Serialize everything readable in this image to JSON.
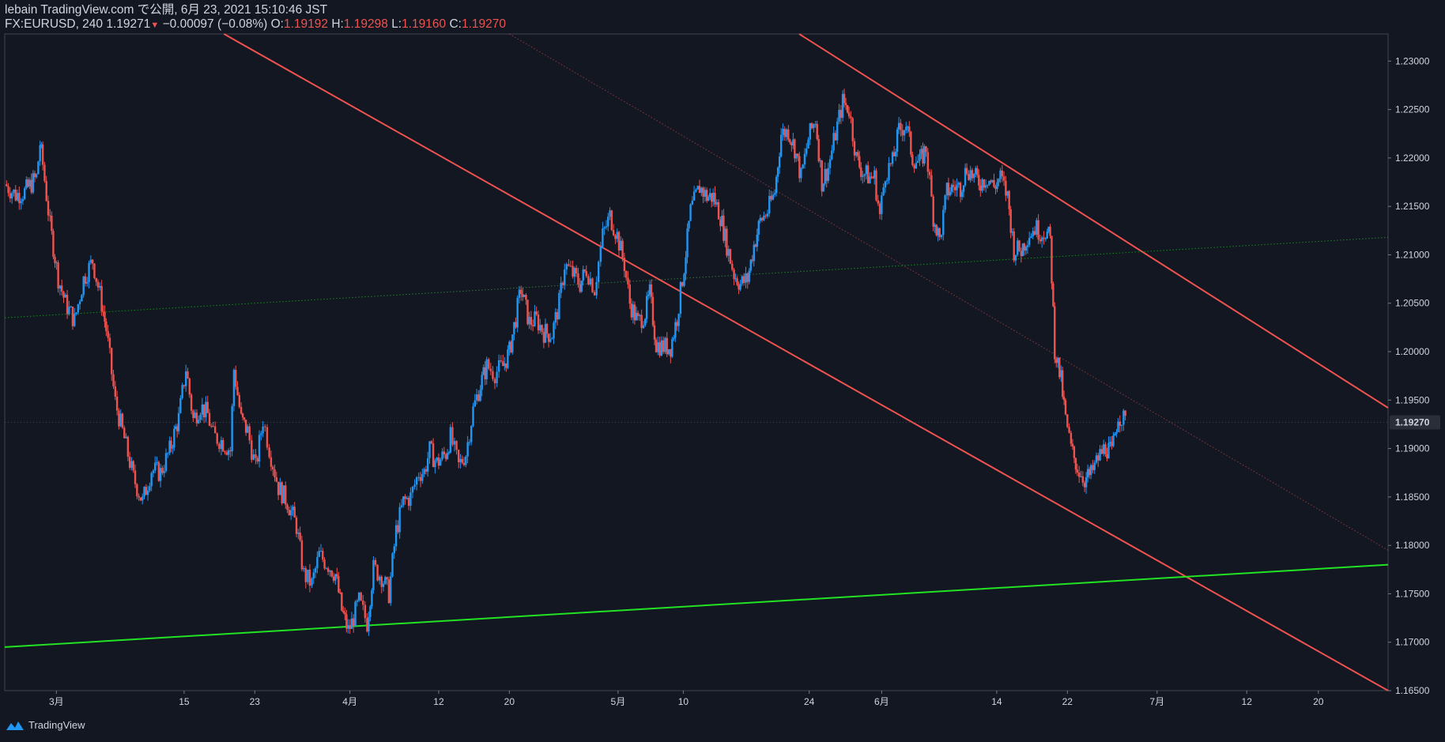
{
  "header": {
    "line1": "lebain TradingView.com で公開, 6月 23, 2021 15:10:46 JST",
    "symbol_interval": "FX:EURUSD, 240",
    "last": "1.19271",
    "arrow": "▼",
    "change": "−0.00097 (−0.08%)",
    "o_label": "O:",
    "o_value": "1.19192",
    "h_label": "H:",
    "h_value": "1.19298",
    "l_label": "L:",
    "l_value": "1.19160",
    "c_label": "C:",
    "c_value": "1.19270"
  },
  "footer": {
    "brand": "TradingView"
  },
  "colors": {
    "background": "#131722",
    "up": "#2196f3",
    "down": "#ef5350",
    "channel": "#ef5350",
    "support": "#22e322",
    "text": "#d1d4dc",
    "grid": "#2a2e39"
  },
  "chart_data": {
    "type": "candlestick",
    "symbol": "FX:EURUSD",
    "interval": "240",
    "ylim": [
      1.165,
      1.2328
    ],
    "y_ticks": [
      "1.23000",
      "1.22500",
      "1.22000",
      "1.21500",
      "1.21000",
      "1.20500",
      "1.20000",
      "1.19500",
      "1.19000",
      "1.18500",
      "1.18000",
      "1.17500",
      "1.17000",
      "1.16500"
    ],
    "last_price_label": "1.19270",
    "x_ticks": [
      {
        "label": "3月",
        "x": 3.0
      },
      {
        "label": "15",
        "x": 17.1
      },
      {
        "label": "23",
        "x": 24.9
      },
      {
        "label": "4月",
        "x": 35.4
      },
      {
        "label": "12",
        "x": 45.2
      },
      {
        "label": "20",
        "x": 53.0
      },
      {
        "label": "5月",
        "x": 65.0
      },
      {
        "label": "10",
        "x": 72.2
      },
      {
        "label": "24",
        "x": 86.1
      },
      {
        "label": "6月",
        "x": 94.1
      },
      {
        "label": "14",
        "x": 106.8
      },
      {
        "label": "22",
        "x": 114.6
      },
      {
        "label": "7月",
        "x": 124.5
      },
      {
        "label": "12",
        "x": 134.4
      },
      {
        "label": "20",
        "x": 142.3
      }
    ],
    "x_range": [
      -2.7,
      150.0
    ],
    "price_path": [
      [
        -2.7,
        1.2173
      ],
      [
        -1.5,
        1.2162
      ],
      [
        -0.5,
        1.2165
      ],
      [
        0.8,
        1.218
      ],
      [
        1.2,
        1.2215
      ],
      [
        1.5,
        1.2193
      ],
      [
        2.3,
        1.213
      ],
      [
        3.2,
        1.2076
      ],
      [
        4.0,
        1.205
      ],
      [
        5.0,
        1.2032
      ],
      [
        6.0,
        1.2075
      ],
      [
        7.0,
        1.2094
      ],
      [
        8.0,
        1.205
      ],
      [
        8.5,
        1.2023
      ],
      [
        9.5,
        1.1948
      ],
      [
        10.5,
        1.191
      ],
      [
        11.5,
        1.187
      ],
      [
        12.5,
        1.1845
      ],
      [
        13.5,
        1.1878
      ],
      [
        14.5,
        1.1875
      ],
      [
        15.5,
        1.1898
      ],
      [
        16.0,
        1.1915
      ],
      [
        16.5,
        1.1931
      ],
      [
        17.3,
        1.1983
      ],
      [
        18.1,
        1.193
      ],
      [
        18.9,
        1.1944
      ],
      [
        19.7,
        1.1935
      ],
      [
        20.3,
        1.1913
      ],
      [
        21.2,
        1.1908
      ],
      [
        22.2,
        1.1898
      ],
      [
        22.6,
        1.1982
      ],
      [
        23.4,
        1.193
      ],
      [
        24.1,
        1.1918
      ],
      [
        25.0,
        1.188
      ],
      [
        25.8,
        1.193
      ],
      [
        26.5,
        1.19
      ],
      [
        27.5,
        1.186
      ],
      [
        28.5,
        1.1845
      ],
      [
        29.5,
        1.182
      ],
      [
        30.3,
        1.177
      ],
      [
        31.2,
        1.176
      ],
      [
        32.0,
        1.179
      ],
      [
        33.0,
        1.178
      ],
      [
        33.8,
        1.177
      ],
      [
        34.5,
        1.1733
      ],
      [
        35.2,
        1.1712
      ],
      [
        35.6,
        1.172
      ],
      [
        36.4,
        1.1742
      ],
      [
        37.3,
        1.172
      ],
      [
        38.0,
        1.1776
      ],
      [
        38.9,
        1.1768
      ],
      [
        39.7,
        1.175
      ],
      [
        40.5,
        1.1815
      ],
      [
        41.3,
        1.1845
      ],
      [
        42.1,
        1.185
      ],
      [
        43.0,
        1.1875
      ],
      [
        43.6,
        1.1876
      ],
      [
        44.2,
        1.1898
      ],
      [
        45.0,
        1.1885
      ],
      [
        46.0,
        1.1895
      ],
      [
        46.5,
        1.1912
      ],
      [
        47.4,
        1.1882
      ],
      [
        48.2,
        1.1895
      ],
      [
        49.0,
        1.194
      ],
      [
        49.8,
        1.1966
      ],
      [
        50.5,
        1.1985
      ],
      [
        51.4,
        1.1978
      ],
      [
        52.3,
        1.1985
      ],
      [
        53.0,
        1.2
      ],
      [
        53.7,
        1.2035
      ],
      [
        54.3,
        1.2065
      ],
      [
        55.2,
        1.203
      ],
      [
        56.0,
        1.2033
      ],
      [
        56.8,
        1.202
      ],
      [
        57.7,
        1.2018
      ],
      [
        58.5,
        1.205
      ],
      [
        59.1,
        1.209
      ],
      [
        60.0,
        1.208
      ],
      [
        60.8,
        1.207
      ],
      [
        61.5,
        1.2085
      ],
      [
        62.4,
        1.2065
      ],
      [
        63.3,
        1.212
      ],
      [
        64.1,
        1.214
      ],
      [
        64.9,
        1.212
      ],
      [
        65.7,
        1.209
      ],
      [
        66.3,
        1.205
      ],
      [
        67.2,
        1.203
      ],
      [
        68.0,
        1.204
      ],
      [
        68.5,
        1.206
      ],
      [
        69.2,
        1.2008
      ],
      [
        70.0,
        1.2005
      ],
      [
        70.8,
        1.2005
      ],
      [
        71.5,
        1.2035
      ],
      [
        72.3,
        1.2088
      ],
      [
        73.0,
        1.2145
      ],
      [
        74.0,
        1.217
      ],
      [
        74.8,
        1.216
      ],
      [
        75.5,
        1.216
      ],
      [
        76.3,
        1.214
      ],
      [
        77.0,
        1.211
      ],
      [
        77.8,
        1.208
      ],
      [
        78.5,
        1.207
      ],
      [
        79.3,
        1.2075
      ],
      [
        80.0,
        1.211
      ],
      [
        80.7,
        1.2135
      ],
      [
        81.5,
        1.2145
      ],
      [
        82.3,
        1.2165
      ],
      [
        83.0,
        1.2225
      ],
      [
        83.8,
        1.2228
      ],
      [
        84.5,
        1.221
      ],
      [
        85.2,
        1.218
      ],
      [
        86.0,
        1.222
      ],
      [
        86.8,
        1.224
      ],
      [
        87.5,
        1.2175
      ],
      [
        88.2,
        1.219
      ],
      [
        89.0,
        1.2225
      ],
      [
        89.8,
        1.2258
      ],
      [
        90.5,
        1.225
      ],
      [
        91.3,
        1.22
      ],
      [
        92.0,
        1.2185
      ],
      [
        92.8,
        1.218
      ],
      [
        93.3,
        1.218
      ],
      [
        93.9,
        1.214
      ],
      [
        94.5,
        1.2185
      ],
      [
        95.3,
        1.2195
      ],
      [
        96.0,
        1.2228
      ],
      [
        96.8,
        1.2235
      ],
      [
        97.5,
        1.22
      ],
      [
        98.3,
        1.2195
      ],
      [
        99.0,
        1.221
      ],
      [
        99.8,
        1.214
      ],
      [
        100.5,
        1.2115
      ],
      [
        101.3,
        1.2165
      ],
      [
        102.0,
        1.217
      ],
      [
        102.8,
        1.217
      ],
      [
        103.5,
        1.219
      ],
      [
        104.3,
        1.218
      ],
      [
        105.0,
        1.2175
      ],
      [
        105.8,
        1.218
      ],
      [
        106.5,
        1.217
      ],
      [
        107.2,
        1.218
      ],
      [
        108.0,
        1.216
      ],
      [
        108.7,
        1.2105
      ],
      [
        109.5,
        1.2105
      ],
      [
        110.2,
        1.212
      ],
      [
        111.0,
        1.2128
      ],
      [
        111.8,
        1.2123
      ],
      [
        112.2,
        1.2125
      ],
      [
        112.7,
        1.2115
      ],
      [
        113.2,
        1.2003
      ],
      [
        113.9,
        1.197
      ],
      [
        114.4,
        1.193
      ],
      [
        115.0,
        1.19
      ],
      [
        115.7,
        1.188
      ],
      [
        116.5,
        1.1868
      ],
      [
        117.2,
        1.1873
      ],
      [
        118.0,
        1.189
      ],
      [
        118.8,
        1.1902
      ],
      [
        119.5,
        1.1895
      ],
      [
        120.2,
        1.1935
      ],
      [
        120.6,
        1.1932
      ],
      [
        121.0,
        1.1927
      ]
    ],
    "trendlines": [
      {
        "name": "channel-lower",
        "x1": 21.5,
        "y1": 1.2328,
        "x2": 150.0,
        "y2": 1.165,
        "style": "solid",
        "color": "#ef5350"
      },
      {
        "name": "channel-upper",
        "x1": 85.0,
        "y1": 1.2328,
        "x2": 150.0,
        "y2": 1.1942,
        "style": "solid",
        "color": "#ef5350"
      },
      {
        "name": "channel-mid",
        "x1": 53.0,
        "y1": 1.2328,
        "x2": 150.0,
        "y2": 1.1795,
        "style": "dotted",
        "color": "#ef5350"
      },
      {
        "name": "support",
        "x1": -2.7,
        "y1": 1.1695,
        "x2": 150.0,
        "y2": 1.178,
        "style": "solid",
        "color": "#22e322"
      },
      {
        "name": "support-parallel",
        "x1": -2.7,
        "y1": 1.2035,
        "x2": 150.0,
        "y2": 1.2118,
        "style": "dotted",
        "color": "#22e322"
      }
    ]
  }
}
